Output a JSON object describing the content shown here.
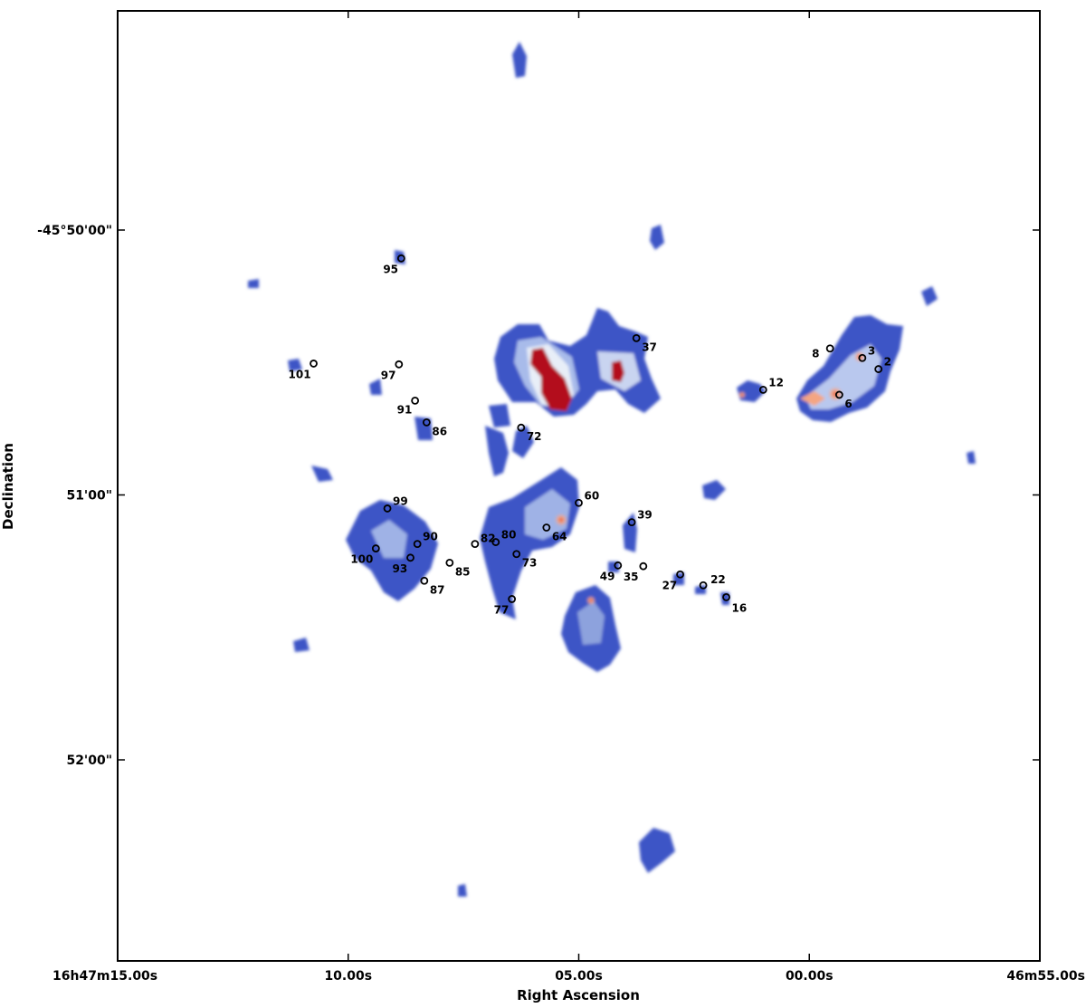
{
  "chart_data": {
    "type": "heatmap",
    "xlabel": "Right Ascension",
    "ylabel": "Declination",
    "x_ticks": [
      "16h47m15.00s",
      "10.00s",
      "05.00s",
      "00.00s",
      "46m55.00s"
    ],
    "x_tick_values_s": [
      15,
      10,
      5,
      0,
      -5
    ],
    "y_ticks": [
      "-45°50'00\"",
      "51'00\"",
      "52'00\""
    ],
    "y_tick_values_arcmin": [
      50,
      51,
      52
    ],
    "x_range_s": [
      15,
      -5
    ],
    "y_range_arcmin": [
      49.17,
      52.75
    ],
    "grid": false,
    "colormap": [
      "#3b52c4",
      "#c9d4f0",
      "#f4a582",
      "#b2182b"
    ],
    "sources": [
      {
        "id": "2",
        "ra_s": -1.5,
        "dec_arcmin": 50.525
      },
      {
        "id": "3",
        "ra_s": -1.15,
        "dec_arcmin": 50.483
      },
      {
        "id": "6",
        "ra_s": -0.65,
        "dec_arcmin": 50.622
      },
      {
        "id": "8",
        "ra_s": -0.45,
        "dec_arcmin": 50.447
      },
      {
        "id": "12",
        "ra_s": 1.0,
        "dec_arcmin": 50.603
      },
      {
        "id": "16",
        "ra_s": 1.8,
        "dec_arcmin": 51.386
      },
      {
        "id": "22",
        "ra_s": 2.3,
        "dec_arcmin": 51.341
      },
      {
        "id": "27",
        "ra_s": 2.8,
        "dec_arcmin": 51.3
      },
      {
        "id": "35",
        "ra_s": 3.6,
        "dec_arcmin": 51.269
      },
      {
        "id": "37",
        "ra_s": 3.75,
        "dec_arcmin": 50.408
      },
      {
        "id": "39",
        "ra_s": 3.85,
        "dec_arcmin": 51.103
      },
      {
        "id": "49",
        "ra_s": 4.15,
        "dec_arcmin": 51.266
      },
      {
        "id": "60",
        "ra_s": 5.0,
        "dec_arcmin": 51.03
      },
      {
        "id": "64",
        "ra_s": 5.7,
        "dec_arcmin": 51.123
      },
      {
        "id": "72",
        "ra_s": 6.25,
        "dec_arcmin": 50.746
      },
      {
        "id": "73",
        "ra_s": 6.35,
        "dec_arcmin": 51.223
      },
      {
        "id": "77",
        "ra_s": 6.45,
        "dec_arcmin": 51.393
      },
      {
        "id": "80",
        "ra_s": 6.8,
        "dec_arcmin": 51.178
      },
      {
        "id": "82",
        "ra_s": 7.25,
        "dec_arcmin": 51.185
      },
      {
        "id": "85",
        "ra_s": 7.8,
        "dec_arcmin": 51.256
      },
      {
        "id": "86",
        "ra_s": 8.3,
        "dec_arcmin": 50.726
      },
      {
        "id": "87",
        "ra_s": 8.35,
        "dec_arcmin": 51.324
      },
      {
        "id": "90",
        "ra_s": 8.5,
        "dec_arcmin": 51.185
      },
      {
        "id": "91",
        "ra_s": 8.55,
        "dec_arcmin": 50.644
      },
      {
        "id": "93",
        "ra_s": 8.65,
        "dec_arcmin": 51.237
      },
      {
        "id": "95",
        "ra_s": 8.85,
        "dec_arcmin": 50.107
      },
      {
        "id": "97",
        "ra_s": 8.9,
        "dec_arcmin": 50.507
      },
      {
        "id": "99",
        "ra_s": 9.15,
        "dec_arcmin": 51.051
      },
      {
        "id": "100",
        "ra_s": 9.4,
        "dec_arcmin": 51.202
      },
      {
        "id": "101",
        "ra_s": 10.75,
        "dec_arcmin": 50.504
      }
    ]
  }
}
